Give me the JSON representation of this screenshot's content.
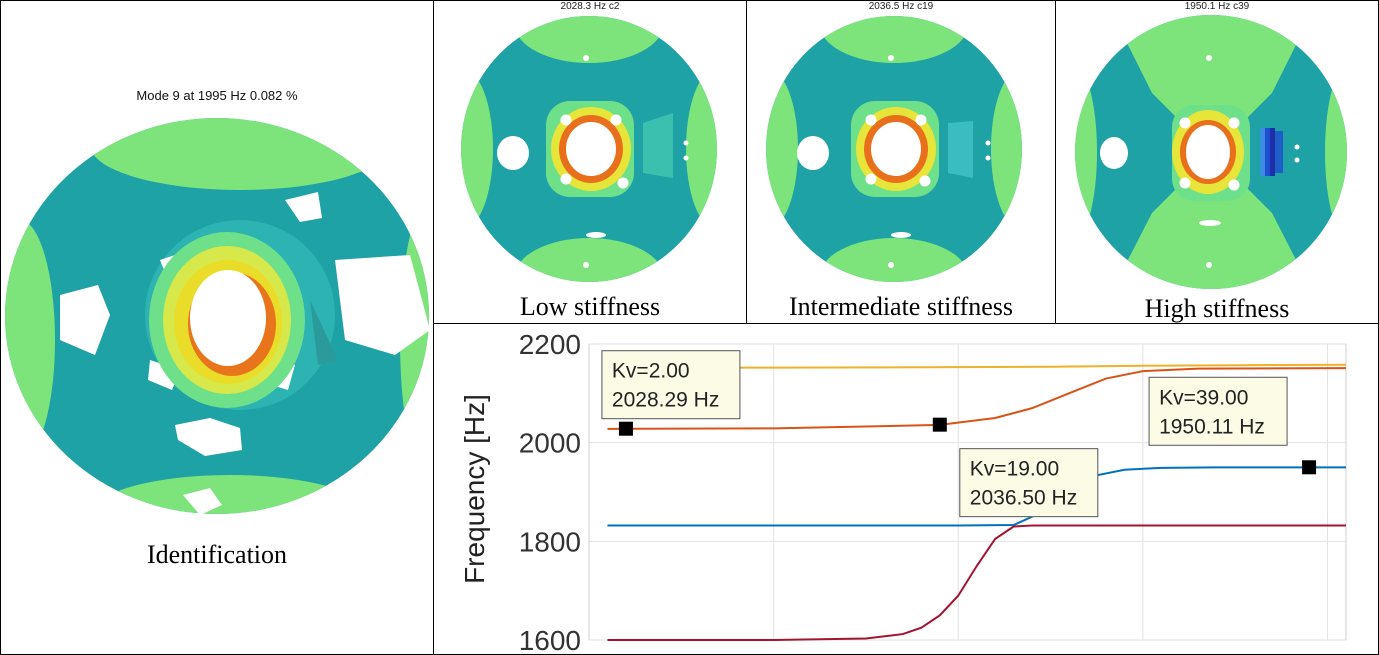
{
  "left_panel": {
    "title": "Mode 9 at 1995 Hz 0.082 %",
    "caption": "Identification"
  },
  "top_panels": [
    {
      "title": "2028.3 Hz c2",
      "caption": "Low stiffness",
      "variant": "low"
    },
    {
      "title": "2036.5 Hz c19",
      "caption": "Intermediate stiffness",
      "variant": "mid"
    },
    {
      "title": "1950.1 Hz c39",
      "caption": "High stiffness",
      "variant": "high"
    }
  ],
  "colors": {
    "disk_teal": "#20a4a6",
    "disk_light_green": "#7fea7f",
    "yellow": "#e8e83a",
    "orange": "#e8701c",
    "blue": "#1e5ad8",
    "line_yellow": "#edb12a",
    "line_orange": "#d95319",
    "line_blue": "#0072bd",
    "line_red": "#a2142f"
  },
  "chart_data": {
    "type": "line",
    "ylabel": "Frequency [Hz]",
    "ylim": [
      1600,
      2200
    ],
    "yticks": [
      1600,
      1800,
      2000,
      2200
    ],
    "xlim": [
      0,
      41
    ],
    "series": [
      {
        "color": "#edb12a",
        "x": [
          1,
          10,
          20,
          25,
          30,
          35,
          41
        ],
        "y": [
          2152,
          2152,
          2153,
          2154,
          2156,
          2157,
          2158
        ]
      },
      {
        "color": "#d95319",
        "x": [
          1,
          10,
          19,
          22,
          24,
          26,
          28,
          30,
          33,
          41
        ],
        "y": [
          2028,
          2029,
          2036,
          2050,
          2070,
          2100,
          2130,
          2145,
          2150,
          2151
        ]
      },
      {
        "color": "#0072bd",
        "x": [
          1,
          10,
          20,
          23,
          24,
          25,
          26,
          27,
          29,
          31,
          34,
          41
        ],
        "y": [
          1832,
          1832,
          1832,
          1833,
          1850,
          1885,
          1910,
          1930,
          1945,
          1949,
          1950,
          1950
        ]
      },
      {
        "color": "#a2142f",
        "x": [
          1,
          10,
          15,
          17,
          18,
          19,
          20,
          21,
          22,
          23,
          24,
          30,
          41
        ],
        "y": [
          1600,
          1600,
          1603,
          1612,
          1625,
          1650,
          1690,
          1750,
          1805,
          1830,
          1832,
          1832,
          1832
        ]
      }
    ],
    "markers": [
      {
        "x": 2,
        "y": 2028.29,
        "label1": "Kv=2.00",
        "label2": "2028.29 Hz"
      },
      {
        "x": 19,
        "y": 2036.5,
        "label1": "Kv=19.00",
        "label2": "2036.50 Hz"
      },
      {
        "x": 39,
        "y": 1950.11,
        "label1": "Kv=39.00",
        "label2": "1950.11 Hz"
      }
    ]
  }
}
